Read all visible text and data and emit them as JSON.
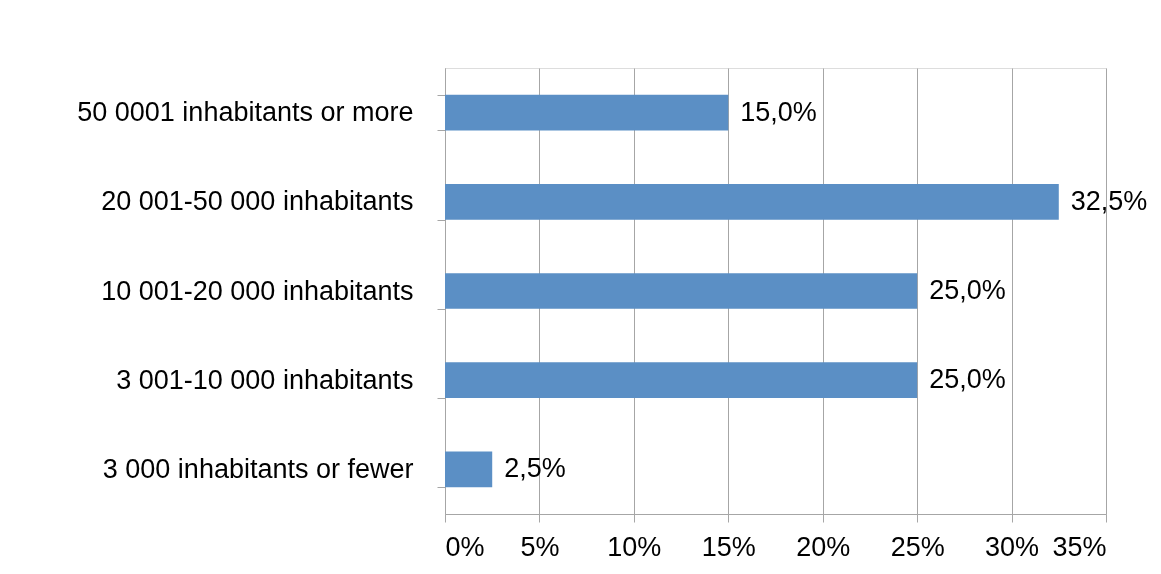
{
  "chart_data": {
    "type": "bar",
    "orientation": "horizontal",
    "categories": [
      "50 0001 inhabitants or more",
      "20 001-50 000 inhabitants",
      "10 001-20 000 inhabitants",
      "3 001-10 000 inhabitants",
      "3 000 inhabitants or fewer"
    ],
    "values": [
      15,
      32.5,
      25,
      25,
      2.5
    ],
    "color": "#5b8fc5",
    "xlim": [
      0,
      35
    ],
    "xticks": [
      {
        "value": 0,
        "label": "0%"
      },
      {
        "value": 5,
        "label": "5%"
      },
      {
        "value": 10,
        "label": "10%"
      },
      {
        "value": 15,
        "label": "15%"
      },
      {
        "value": 20,
        "label": "20%"
      },
      {
        "value": 25,
        "label": "25%"
      },
      {
        "value": 30,
        "label": "30%"
      },
      {
        "value": 35,
        "label": "35%"
      }
    ],
    "grid": "x",
    "value_labels": [
      "15,0%",
      "32,5%",
      "25,0%",
      "25,0%",
      "2,5%"
    ]
  }
}
